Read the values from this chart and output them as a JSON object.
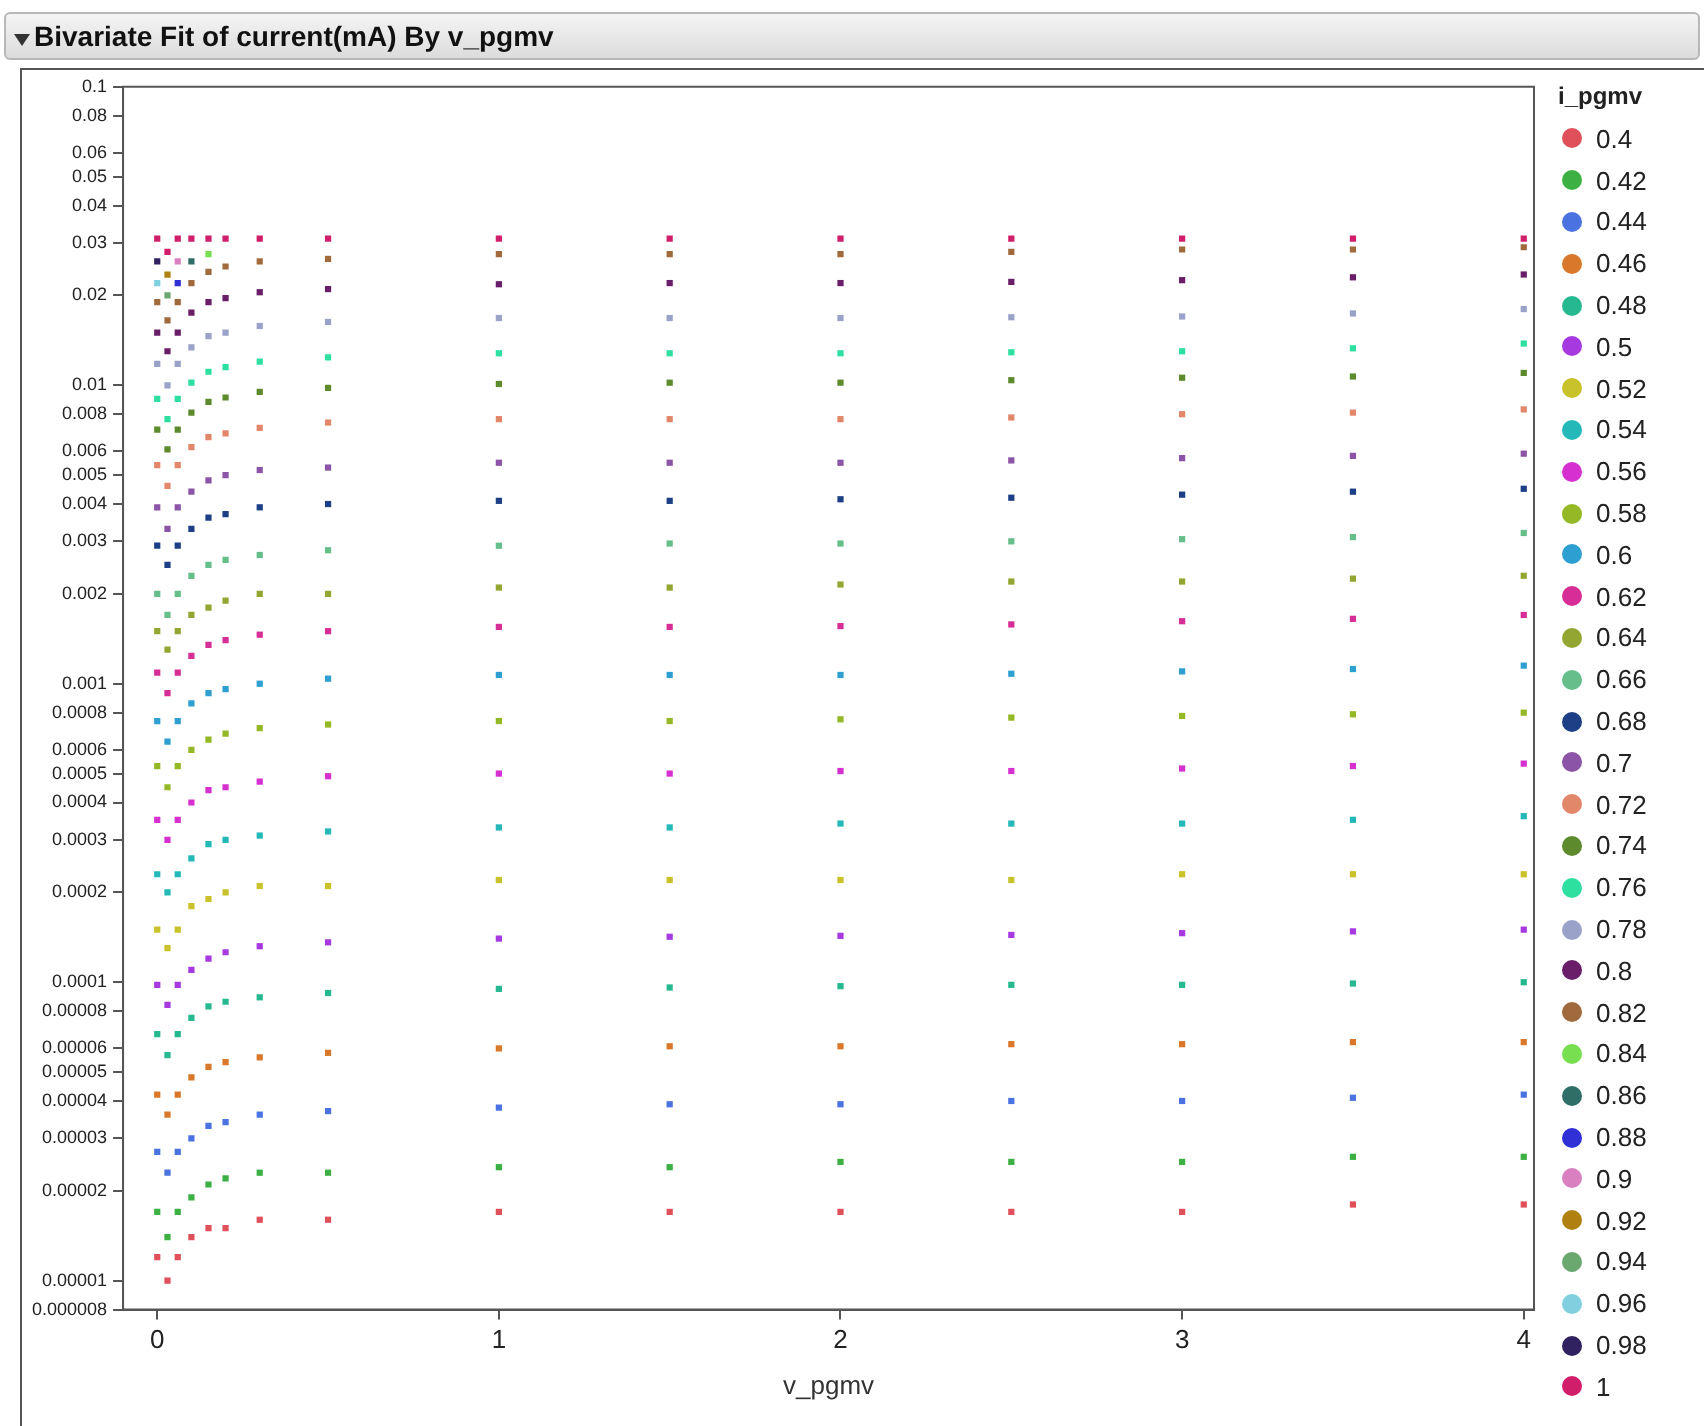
{
  "chart_data": {
    "type": "scatter",
    "title": "Bivariate Fit of current(mA) By v_pgmv",
    "xlabel": "v_pgmv",
    "legend_title": "i_pgmv",
    "legend": "right",
    "marker": "square",
    "grid": false,
    "log": "y",
    "xlim": [
      -0.1,
      4.03
    ],
    "xticks": [
      0,
      1,
      2,
      3,
      4
    ],
    "ylim": [
      8e-06,
      0.1
    ],
    "yticks": [
      {
        "value": 0.1,
        "label": "0.1"
      },
      {
        "value": 0.08,
        "label": "0.08"
      },
      {
        "value": 0.06,
        "label": "0.06"
      },
      {
        "value": 0.05,
        "label": "0.05"
      },
      {
        "value": 0.04,
        "label": "0.04"
      },
      {
        "value": 0.03,
        "label": "0.03"
      },
      {
        "value": 0.02,
        "label": "0.02"
      },
      {
        "value": 0.01,
        "label": "0.01"
      },
      {
        "value": 0.008,
        "label": "0.008"
      },
      {
        "value": 0.006,
        "label": "0.006"
      },
      {
        "value": 0.005,
        "label": "0.005"
      },
      {
        "value": 0.004,
        "label": "0.004"
      },
      {
        "value": 0.003,
        "label": "0.003"
      },
      {
        "value": 0.002,
        "label": "0.002"
      },
      {
        "value": 0.001,
        "label": "0.001"
      },
      {
        "value": 0.0008,
        "label": "0.0008"
      },
      {
        "value": 0.0006,
        "label": "0.0006"
      },
      {
        "value": 0.0005,
        "label": "0.0005"
      },
      {
        "value": 0.0004,
        "label": "0.0004"
      },
      {
        "value": 0.0003,
        "label": "0.0003"
      },
      {
        "value": 0.0002,
        "label": "0.0002"
      },
      {
        "value": 0.0001,
        "label": "0.0001"
      },
      {
        "value": 8e-05,
        "label": "0.00008"
      },
      {
        "value": 6e-05,
        "label": "0.00006"
      },
      {
        "value": 5e-05,
        "label": "0.00005"
      },
      {
        "value": 4e-05,
        "label": "0.00004"
      },
      {
        "value": 3e-05,
        "label": "0.00003"
      },
      {
        "value": 2e-05,
        "label": "0.00002"
      },
      {
        "value": 1e-05,
        "label": "0.00001"
      },
      {
        "value": 8e-06,
        "label": "0.000008"
      }
    ],
    "x": [
      0,
      0.03,
      0.06,
      0.1,
      0.15,
      0.2,
      0.3,
      0.5,
      1,
      1.5,
      2,
      2.5,
      3,
      3.5,
      4
    ],
    "series": [
      {
        "name": "0.4",
        "color": "#e0505a",
        "values": [
          1.2e-05,
          1e-05,
          1.2e-05,
          1.4e-05,
          1.5e-05,
          1.5e-05,
          1.6e-05,
          1.6e-05,
          1.7e-05,
          1.7e-05,
          1.7e-05,
          1.7e-05,
          1.7e-05,
          1.8e-05,
          1.8e-05
        ]
      },
      {
        "name": "0.42",
        "color": "#3cb043",
        "values": [
          1.7e-05,
          1.4e-05,
          1.7e-05,
          1.9e-05,
          2.1e-05,
          2.2e-05,
          2.3e-05,
          2.3e-05,
          2.4e-05,
          2.4e-05,
          2.5e-05,
          2.5e-05,
          2.5e-05,
          2.6e-05,
          2.6e-05
        ]
      },
      {
        "name": "0.44",
        "color": "#4a72e0",
        "values": [
          2.7e-05,
          2.3e-05,
          2.7e-05,
          3e-05,
          3.3e-05,
          3.4e-05,
          3.6e-05,
          3.7e-05,
          3.8e-05,
          3.9e-05,
          3.9e-05,
          4e-05,
          4e-05,
          4.1e-05,
          4.2e-05
        ]
      },
      {
        "name": "0.46",
        "color": "#d9782a",
        "values": [
          4.2e-05,
          3.6e-05,
          4.2e-05,
          4.8e-05,
          5.2e-05,
          5.4e-05,
          5.6e-05,
          5.8e-05,
          6e-05,
          6.1e-05,
          6.1e-05,
          6.2e-05,
          6.2e-05,
          6.3e-05,
          6.3e-05
        ]
      },
      {
        "name": "0.48",
        "color": "#26b88e",
        "values": [
          6.7e-05,
          5.7e-05,
          6.7e-05,
          7.6e-05,
          8.3e-05,
          8.6e-05,
          8.9e-05,
          9.2e-05,
          9.5e-05,
          9.6e-05,
          9.7e-05,
          9.8e-05,
          9.8e-05,
          9.9e-05,
          0.0001
        ]
      },
      {
        "name": "0.5",
        "color": "#a63ae0",
        "values": [
          9.8e-05,
          8.4e-05,
          9.8e-05,
          0.00011,
          0.00012,
          0.000126,
          0.000132,
          0.000136,
          0.00014,
          0.000142,
          0.000143,
          0.000144,
          0.000146,
          0.000148,
          0.00015
        ]
      },
      {
        "name": "0.52",
        "color": "#c9c22a",
        "values": [
          0.00015,
          0.00013,
          0.00015,
          0.00018,
          0.00019,
          0.0002,
          0.00021,
          0.00021,
          0.00022,
          0.00022,
          0.00022,
          0.00022,
          0.00023,
          0.00023,
          0.00023
        ]
      },
      {
        "name": "0.54",
        "color": "#24b8b8",
        "values": [
          0.00023,
          0.0002,
          0.00023,
          0.00026,
          0.00029,
          0.0003,
          0.00031,
          0.00032,
          0.00033,
          0.00033,
          0.00034,
          0.00034,
          0.00034,
          0.00035,
          0.00036
        ]
      },
      {
        "name": "0.56",
        "color": "#d630d0",
        "values": [
          0.00035,
          0.0003,
          0.00035,
          0.0004,
          0.00044,
          0.00045,
          0.00047,
          0.00049,
          0.0005,
          0.0005,
          0.00051,
          0.00051,
          0.00052,
          0.00053,
          0.00054
        ]
      },
      {
        "name": "0.58",
        "color": "#95b826",
        "values": [
          0.00053,
          0.00045,
          0.00053,
          0.0006,
          0.00065,
          0.00068,
          0.00071,
          0.00073,
          0.00075,
          0.00075,
          0.00076,
          0.00077,
          0.00078,
          0.00079,
          0.0008
        ]
      },
      {
        "name": "0.6",
        "color": "#2d9fd0",
        "values": [
          0.00075,
          0.00064,
          0.00075,
          0.00086,
          0.00093,
          0.00096,
          0.001,
          0.00104,
          0.00107,
          0.00107,
          0.00107,
          0.00108,
          0.0011,
          0.00112,
          0.00115
        ]
      },
      {
        "name": "0.62",
        "color": "#d62e96",
        "values": [
          0.00109,
          0.00093,
          0.00109,
          0.00124,
          0.00135,
          0.0014,
          0.00146,
          0.0015,
          0.00155,
          0.00155,
          0.00156,
          0.00158,
          0.00162,
          0.00165,
          0.0017
        ]
      },
      {
        "name": "0.64",
        "color": "#94a632",
        "values": [
          0.0015,
          0.0013,
          0.0015,
          0.0017,
          0.0018,
          0.0019,
          0.002,
          0.002,
          0.0021,
          0.0021,
          0.00215,
          0.0022,
          0.0022,
          0.00225,
          0.0023
        ]
      },
      {
        "name": "0.66",
        "color": "#66be8a",
        "values": [
          0.002,
          0.0017,
          0.002,
          0.0023,
          0.0025,
          0.0026,
          0.0027,
          0.0028,
          0.0029,
          0.00295,
          0.00295,
          0.003,
          0.00305,
          0.0031,
          0.0032
        ]
      },
      {
        "name": "0.68",
        "color": "#1d3f86",
        "values": [
          0.0029,
          0.0025,
          0.0029,
          0.0033,
          0.0036,
          0.0037,
          0.0039,
          0.004,
          0.0041,
          0.0041,
          0.00415,
          0.0042,
          0.0043,
          0.0044,
          0.0045
        ]
      },
      {
        "name": "0.7",
        "color": "#8c54a6",
        "values": [
          0.0039,
          0.0033,
          0.0039,
          0.0044,
          0.0048,
          0.005,
          0.0052,
          0.0053,
          0.0055,
          0.0055,
          0.0055,
          0.0056,
          0.0057,
          0.0058,
          0.0059
        ]
      },
      {
        "name": "0.72",
        "color": "#e2876a",
        "values": [
          0.0054,
          0.0046,
          0.0054,
          0.0062,
          0.0067,
          0.0069,
          0.0072,
          0.0075,
          0.0077,
          0.0077,
          0.0077,
          0.0078,
          0.008,
          0.0081,
          0.0083
        ]
      },
      {
        "name": "0.74",
        "color": "#5e8a2e",
        "values": [
          0.0071,
          0.0061,
          0.0071,
          0.0081,
          0.0088,
          0.0091,
          0.0095,
          0.0098,
          0.0101,
          0.0102,
          0.0102,
          0.0104,
          0.0106,
          0.0107,
          0.011
        ]
      },
      {
        "name": "0.76",
        "color": "#2ee0a0",
        "values": [
          0.009,
          0.0077,
          0.009,
          0.0102,
          0.0111,
          0.0115,
          0.012,
          0.0124,
          0.0128,
          0.0128,
          0.0128,
          0.0129,
          0.013,
          0.0133,
          0.0138
        ]
      },
      {
        "name": "0.78",
        "color": "#9aa2ca",
        "values": [
          0.0118,
          0.01,
          0.0118,
          0.0134,
          0.0146,
          0.015,
          0.0158,
          0.0163,
          0.0168,
          0.0168,
          0.0168,
          0.0169,
          0.017,
          0.0174,
          0.018
        ]
      },
      {
        "name": "0.8",
        "color": "#6a1e6a",
        "values": [
          0.015,
          0.013,
          0.015,
          0.0175,
          0.019,
          0.0196,
          0.0205,
          0.021,
          0.0218,
          0.022,
          0.022,
          0.0222,
          0.0225,
          0.023,
          0.0235
        ]
      },
      {
        "name": "0.82",
        "color": "#a06a3c",
        "values": [
          0.019,
          0.0165,
          0.019,
          0.022,
          0.024,
          0.025,
          0.026,
          0.0265,
          0.0275,
          0.0275,
          0.0275,
          0.028,
          0.0285,
          0.0285,
          0.029
        ]
      },
      {
        "name": "0.84",
        "color": "#78e050",
        "values": [
          null,
          null,
          null,
          null,
          0.0275,
          null,
          null,
          null,
          null,
          null,
          null,
          null,
          null,
          null,
          null
        ]
      },
      {
        "name": "0.86",
        "color": "#2e6e66",
        "values": [
          null,
          null,
          null,
          0.026,
          null,
          null,
          null,
          null,
          null,
          null,
          null,
          null,
          null,
          null,
          null
        ]
      },
      {
        "name": "0.88",
        "color": "#3030d6",
        "values": [
          null,
          null,
          0.022,
          null,
          null,
          null,
          null,
          null,
          null,
          null,
          null,
          null,
          null,
          null,
          null
        ]
      },
      {
        "name": "0.9",
        "color": "#d880c0",
        "values": [
          null,
          null,
          0.026,
          null,
          null,
          null,
          null,
          null,
          null,
          null,
          null,
          null,
          null,
          null,
          null
        ]
      },
      {
        "name": "0.92",
        "color": "#b08010",
        "values": [
          null,
          0.0235,
          null,
          null,
          null,
          null,
          null,
          null,
          null,
          null,
          null,
          null,
          null,
          null,
          null
        ]
      },
      {
        "name": "0.94",
        "color": "#6aa870",
        "values": [
          null,
          0.02,
          null,
          null,
          null,
          null,
          null,
          null,
          null,
          null,
          null,
          null,
          null,
          null,
          null
        ]
      },
      {
        "name": "0.96",
        "color": "#80d0e0",
        "values": [
          0.022,
          null,
          null,
          null,
          null,
          null,
          null,
          null,
          null,
          null,
          null,
          null,
          null,
          null,
          null
        ]
      },
      {
        "name": "0.98",
        "color": "#302260",
        "values": [
          0.026,
          null,
          null,
          null,
          null,
          null,
          null,
          null,
          null,
          null,
          null,
          null,
          null,
          null,
          null
        ]
      },
      {
        "name": "1",
        "color": "#d01e6a",
        "values": [
          0.031,
          0.028,
          0.031,
          0.031,
          0.031,
          0.031,
          0.031,
          0.031,
          0.031,
          0.031,
          0.031,
          0.031,
          0.031,
          0.031,
          0.031
        ]
      }
    ]
  }
}
